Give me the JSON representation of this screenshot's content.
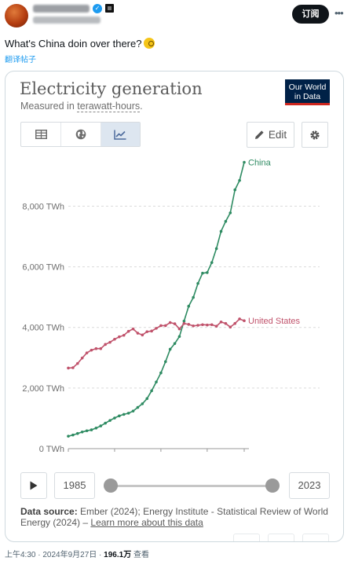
{
  "post": {
    "subscribe_label": "订阅",
    "more_icon": "more-horizontal-icon",
    "text": "What's China doin over there?",
    "translate_label": "翻译帖子",
    "timestamp": "上午4:30 · 2024年9月27日 · ",
    "views": "196.1万",
    "views_suffix": " 查看"
  },
  "card": {
    "title": "Electricity generation",
    "subtitle_prefix": "Measured in ",
    "subtitle_unit": "terawatt-hours",
    "subtitle_suffix": ".",
    "logo_line1": "Our World",
    "logo_line2": "in Data",
    "tabs": [
      {
        "name": "table",
        "icon": "table-icon"
      },
      {
        "name": "map",
        "icon": "globe-icon"
      },
      {
        "name": "chart",
        "icon": "line-chart-icon",
        "active": true
      }
    ],
    "edit_label": "Edit",
    "source_label": "Data source:",
    "source_text": " Ember (2024); Energy Institute - Statistical Review of World Energy (2024) – ",
    "source_link": "Learn more about this data",
    "timeline": {
      "start_year": "1985",
      "end_year": "2023"
    }
  },
  "colors": {
    "china": "#2e8b62",
    "united_states": "#c0526b",
    "logo_bg": "#002147",
    "logo_accent": "#ce261e"
  },
  "chart_data": {
    "type": "line",
    "title": "Electricity generation",
    "subtitle": "Measured in terawatt-hours.",
    "ylim": [
      0,
      9800
    ],
    "xlim": [
      1985,
      2023
    ],
    "y_ticks": [
      0,
      2000,
      4000,
      6000,
      8000
    ],
    "y_tick_labels": [
      "0 TWh",
      "2,000 TWh",
      "4,000 TWh",
      "6,000 TWh",
      "8,000 TWh"
    ],
    "x_ticks": [
      1985,
      1995,
      2005,
      2015,
      2023
    ],
    "grid": "horizontal-dashed",
    "series": [
      {
        "name": "China",
        "x": [
          1985,
          1986,
          1987,
          1988,
          1989,
          1990,
          1991,
          1992,
          1993,
          1994,
          1995,
          1996,
          1997,
          1998,
          1999,
          2000,
          2001,
          2002,
          2003,
          2004,
          2005,
          2006,
          2007,
          2008,
          2009,
          2010,
          2011,
          2012,
          2013,
          2014,
          2015,
          2016,
          2017,
          2018,
          2019,
          2020,
          2021,
          2022,
          2023
        ],
        "values": [
          410,
          450,
          500,
          550,
          590,
          620,
          680,
          750,
          840,
          930,
          1010,
          1080,
          1130,
          1170,
          1240,
          1360,
          1480,
          1650,
          1910,
          2200,
          2500,
          2870,
          3280,
          3470,
          3700,
          4210,
          4700,
          4990,
          5450,
          5790,
          5810,
          6140,
          6600,
          7170,
          7500,
          7780,
          8540,
          8850,
          9450
        ]
      },
      {
        "name": "United States",
        "x": [
          1985,
          1986,
          1987,
          1988,
          1989,
          1990,
          1991,
          1992,
          1993,
          1994,
          1995,
          1996,
          1997,
          1998,
          1999,
          2000,
          2001,
          2002,
          2003,
          2004,
          2005,
          2006,
          2007,
          2008,
          2009,
          2010,
          2011,
          2012,
          2013,
          2014,
          2015,
          2016,
          2017,
          2018,
          2019,
          2020,
          2021,
          2022,
          2023
        ],
        "values": [
          2660,
          2670,
          2810,
          2990,
          3160,
          3250,
          3300,
          3300,
          3440,
          3510,
          3610,
          3690,
          3740,
          3870,
          3950,
          3810,
          3750,
          3860,
          3880,
          3970,
          4060,
          4060,
          4160,
          4120,
          3950,
          4130,
          4100,
          4050,
          4070,
          4090,
          4080,
          4090,
          4040,
          4180,
          4130,
          4010,
          4130,
          4280,
          4220
        ]
      }
    ]
  }
}
